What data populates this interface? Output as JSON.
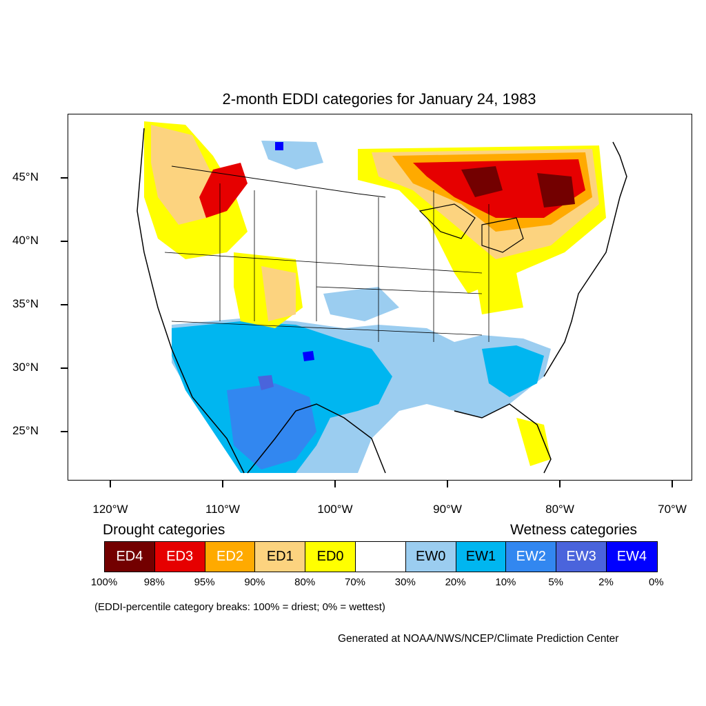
{
  "title": "2-month EDDI categories for January 24, 1983",
  "lat_labels": [
    "45°N",
    "40°N",
    "35°N",
    "30°N",
    "25°N"
  ],
  "lon_labels": [
    "120°W",
    "110°W",
    "100°W",
    "90°W",
    "80°W",
    "70°W"
  ],
  "legend": {
    "drought_heading": "Drought categories",
    "wetness_heading": "Wetness categories",
    "categories": [
      {
        "label": "ED4",
        "color": "#730000",
        "text_color": "#ffffff"
      },
      {
        "label": "ED3",
        "color": "#e60000",
        "text_color": "#ffffff"
      },
      {
        "label": "ED2",
        "color": "#ffaa00",
        "text_color": "#ffffff"
      },
      {
        "label": "ED1",
        "color": "#fcd37f",
        "text_color": "#000000"
      },
      {
        "label": "ED0",
        "color": "#ffff00",
        "text_color": "#000000"
      },
      {
        "label": "",
        "color": "#ffffff",
        "text_color": "#000000"
      },
      {
        "label": "EW0",
        "color": "#9bcdf0",
        "text_color": "#000000"
      },
      {
        "label": "EW1",
        "color": "#00b6f0",
        "text_color": "#000000"
      },
      {
        "label": "EW2",
        "color": "#3287f0",
        "text_color": "#ffffff"
      },
      {
        "label": "EW3",
        "color": "#4a64dc",
        "text_color": "#ffffff"
      },
      {
        "label": "EW4",
        "color": "#0000ff",
        "text_color": "#ffffff"
      }
    ],
    "percentiles": [
      "100%",
      "98%",
      "95%",
      "90%",
      "80%",
      "70%",
      "30%",
      "20%",
      "10%",
      "5%",
      "2%",
      "0%"
    ]
  },
  "breaks_note": "(EDDI-percentile category breaks: 100% = driest; 0% = wettest)",
  "credit": "Generated at NOAA/NWS/NCEP/Climate Prediction Center"
}
